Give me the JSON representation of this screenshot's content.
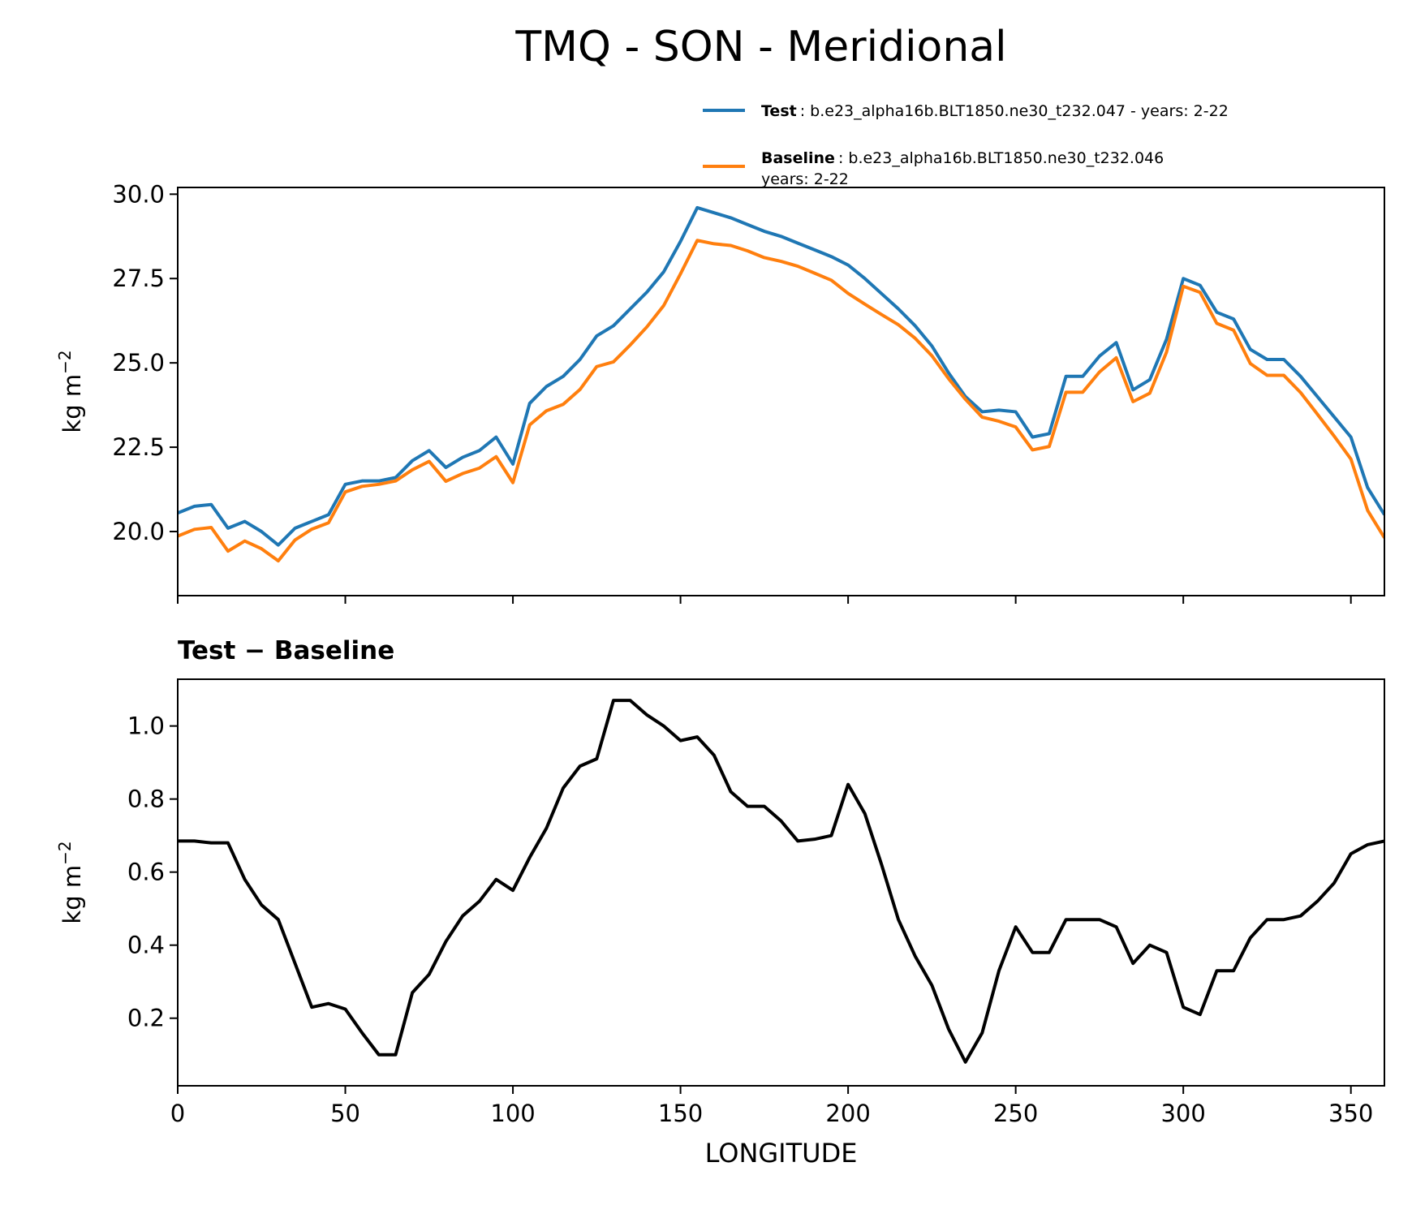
{
  "title": "TMQ - SON - Meridional",
  "chart_data": [
    {
      "type": "line",
      "xlim": [
        0,
        360
      ],
      "xticks": [
        0,
        50,
        100,
        150,
        200,
        250,
        300,
        350
      ],
      "ylim": [
        18.1,
        30.2
      ],
      "yticks": [
        {
          "value": 20,
          "label": "20.0"
        },
        22.5,
        {
          "value": 25,
          "label": "25.0"
        },
        27.5,
        {
          "value": 30,
          "label": "30.0"
        }
      ],
      "ylabel": {
        "base": "kg m",
        "sup": "−2"
      },
      "x": [
        0,
        5,
        10,
        15,
        20,
        25,
        30,
        35,
        40,
        45,
        50,
        55,
        60,
        65,
        70,
        75,
        80,
        85,
        90,
        95,
        100,
        105,
        110,
        115,
        120,
        125,
        130,
        135,
        140,
        145,
        150,
        155,
        160,
        165,
        170,
        175,
        180,
        185,
        190,
        195,
        200,
        205,
        210,
        215,
        220,
        225,
        230,
        235,
        240,
        245,
        250,
        255,
        260,
        265,
        270,
        275,
        280,
        285,
        290,
        295,
        300,
        305,
        310,
        315,
        320,
        325,
        330,
        335,
        340,
        345,
        350,
        355,
        360
      ],
      "series": [
        {
          "name": "Test",
          "label": ": b.e23_alpha16b.BLT1850.ne30_t232.047 - years: 2-22",
          "color": "#1f77b4",
          "values": [
            20.55,
            20.75,
            20.8,
            20.1,
            20.3,
            20.0,
            19.6,
            20.1,
            20.3,
            20.5,
            21.4,
            21.5,
            21.5,
            21.6,
            22.1,
            22.4,
            21.9,
            22.2,
            22.4,
            22.8,
            22.0,
            23.8,
            24.3,
            24.6,
            25.1,
            25.8,
            26.1,
            26.6,
            27.1,
            27.7,
            28.6,
            29.6,
            29.45,
            29.3,
            29.1,
            28.9,
            28.75,
            28.55,
            28.35,
            28.15,
            27.9,
            27.5,
            27.05,
            26.6,
            26.1,
            25.5,
            24.7,
            24.0,
            23.55,
            23.6,
            23.55,
            22.8,
            22.9,
            24.6,
            24.6,
            25.2,
            25.6,
            24.2,
            24.5,
            25.7,
            27.5,
            27.3,
            26.5,
            26.3,
            25.4,
            25.1,
            25.1,
            24.6,
            24.0,
            23.4,
            22.8,
            21.3,
            20.5
          ]
        },
        {
          "name": "Baseline",
          "label": [
            ": b.e23_alpha16b.BLT1850.ne30_t232.046",
            "years: 2-22"
          ],
          "color": "#ff7f0e",
          "values": [
            19.865,
            20.065,
            20.12,
            19.42,
            19.72,
            19.49,
            19.13,
            19.75,
            20.07,
            20.26,
            21.175,
            21.34,
            21.4,
            21.5,
            21.83,
            22.08,
            21.49,
            21.72,
            21.88,
            22.22,
            21.45,
            23.16,
            23.58,
            23.77,
            24.21,
            24.89,
            25.03,
            25.53,
            26.07,
            26.7,
            27.64,
            28.63,
            28.53,
            28.48,
            28.32,
            28.12,
            28.01,
            27.865,
            27.66,
            27.45,
            27.06,
            26.74,
            26.43,
            26.13,
            25.73,
            25.21,
            24.53,
            23.92,
            23.39,
            23.27,
            23.1,
            22.42,
            22.52,
            24.13,
            24.13,
            24.73,
            25.15,
            23.85,
            24.1,
            25.32,
            27.27,
            27.09,
            26.17,
            25.97,
            24.98,
            24.63,
            24.63,
            24.12,
            23.48,
            22.83,
            22.15,
            20.625,
            19.815
          ]
        }
      ]
    },
    {
      "type": "line",
      "title": "Test − Baseline",
      "xlim": [
        0,
        360
      ],
      "xticks": [
        0,
        50,
        100,
        150,
        200,
        250,
        300,
        350
      ],
      "xlabel": "LONGITUDE",
      "ylim": [
        0.015,
        1.128
      ],
      "yticks": [
        0.2,
        0.4,
        0.6,
        0.8,
        {
          "value": 1,
          "label": "1.0"
        }
      ],
      "ylabel": {
        "base": "kg m",
        "sup": "−2"
      },
      "x": [
        0,
        5,
        10,
        15,
        20,
        25,
        30,
        35,
        40,
        45,
        50,
        55,
        60,
        65,
        70,
        75,
        80,
        85,
        90,
        95,
        100,
        105,
        110,
        115,
        120,
        125,
        130,
        135,
        140,
        145,
        150,
        155,
        160,
        165,
        170,
        175,
        180,
        185,
        190,
        195,
        200,
        205,
        210,
        215,
        220,
        225,
        230,
        235,
        240,
        245,
        250,
        255,
        260,
        265,
        270,
        275,
        280,
        285,
        290,
        295,
        300,
        305,
        310,
        315,
        320,
        325,
        330,
        335,
        340,
        345,
        350,
        355,
        360
      ],
      "series": [
        {
          "color": "#000000",
          "values": [
            0.685,
            0.685,
            0.68,
            0.68,
            0.58,
            0.51,
            0.47,
            0.35,
            0.23,
            0.24,
            0.225,
            0.16,
            0.1,
            0.1,
            0.27,
            0.32,
            0.41,
            0.48,
            0.52,
            0.58,
            0.55,
            0.64,
            0.72,
            0.83,
            0.89,
            0.91,
            1.07,
            1.07,
            1.03,
            1.0,
            0.96,
            0.97,
            0.92,
            0.82,
            0.78,
            0.78,
            0.74,
            0.685,
            0.69,
            0.7,
            0.84,
            0.76,
            0.62,
            0.47,
            0.37,
            0.29,
            0.17,
            0.08,
            0.16,
            0.33,
            0.45,
            0.38,
            0.38,
            0.47,
            0.47,
            0.47,
            0.45,
            0.35,
            0.4,
            0.38,
            0.23,
            0.21,
            0.33,
            0.33,
            0.42,
            0.47,
            0.47,
            0.48,
            0.52,
            0.57,
            0.65,
            0.675,
            0.685
          ]
        }
      ]
    }
  ]
}
